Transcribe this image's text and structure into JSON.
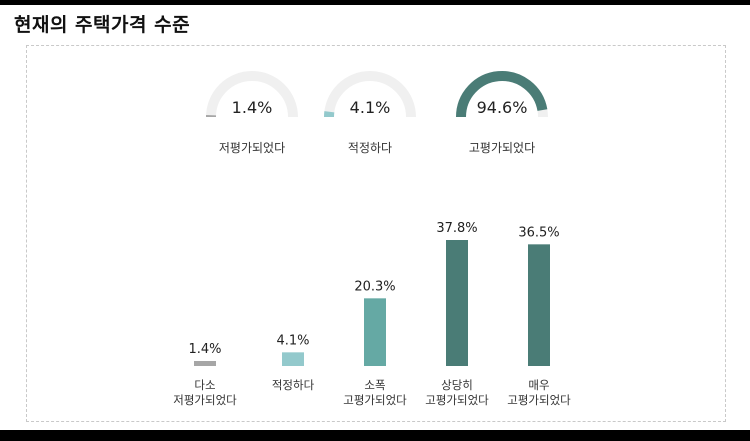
{
  "page": {
    "title": "현재의 주택가격 수준"
  },
  "chart_data": [
    {
      "type": "gauge",
      "categories": [
        "저평가되었다",
        "적정하다",
        "고평가되었다"
      ],
      "values": [
        1.4,
        4.1,
        94.6
      ],
      "value_labels": [
        "1.4%",
        "4.1%",
        "94.6%"
      ],
      "unit": "%",
      "range": [
        0,
        100
      ],
      "colors": [
        "#a6a6a6",
        "#93c9cc",
        "#4a7c76"
      ],
      "track_color": "#f0f0f0"
    },
    {
      "type": "bar",
      "categories": [
        [
          "다소",
          "저평가되었다"
        ],
        [
          "적정하다"
        ],
        [
          "소폭",
          "고평가되었다"
        ],
        [
          "상당히",
          "고평가되었다"
        ],
        [
          "매우",
          "고평가되었다"
        ]
      ],
      "values": [
        1.4,
        4.1,
        20.3,
        37.8,
        36.5
      ],
      "value_labels": [
        "1.4%",
        "4.1%",
        "20.3%",
        "37.8%",
        "36.5%"
      ],
      "unit": "%",
      "ylim": [
        0,
        37.8
      ],
      "colors": [
        "#a6a6a6",
        "#93c9cc",
        "#65a9a4",
        "#4a7c76",
        "#4a7c76"
      ],
      "grid": false,
      "legend": "none"
    }
  ]
}
